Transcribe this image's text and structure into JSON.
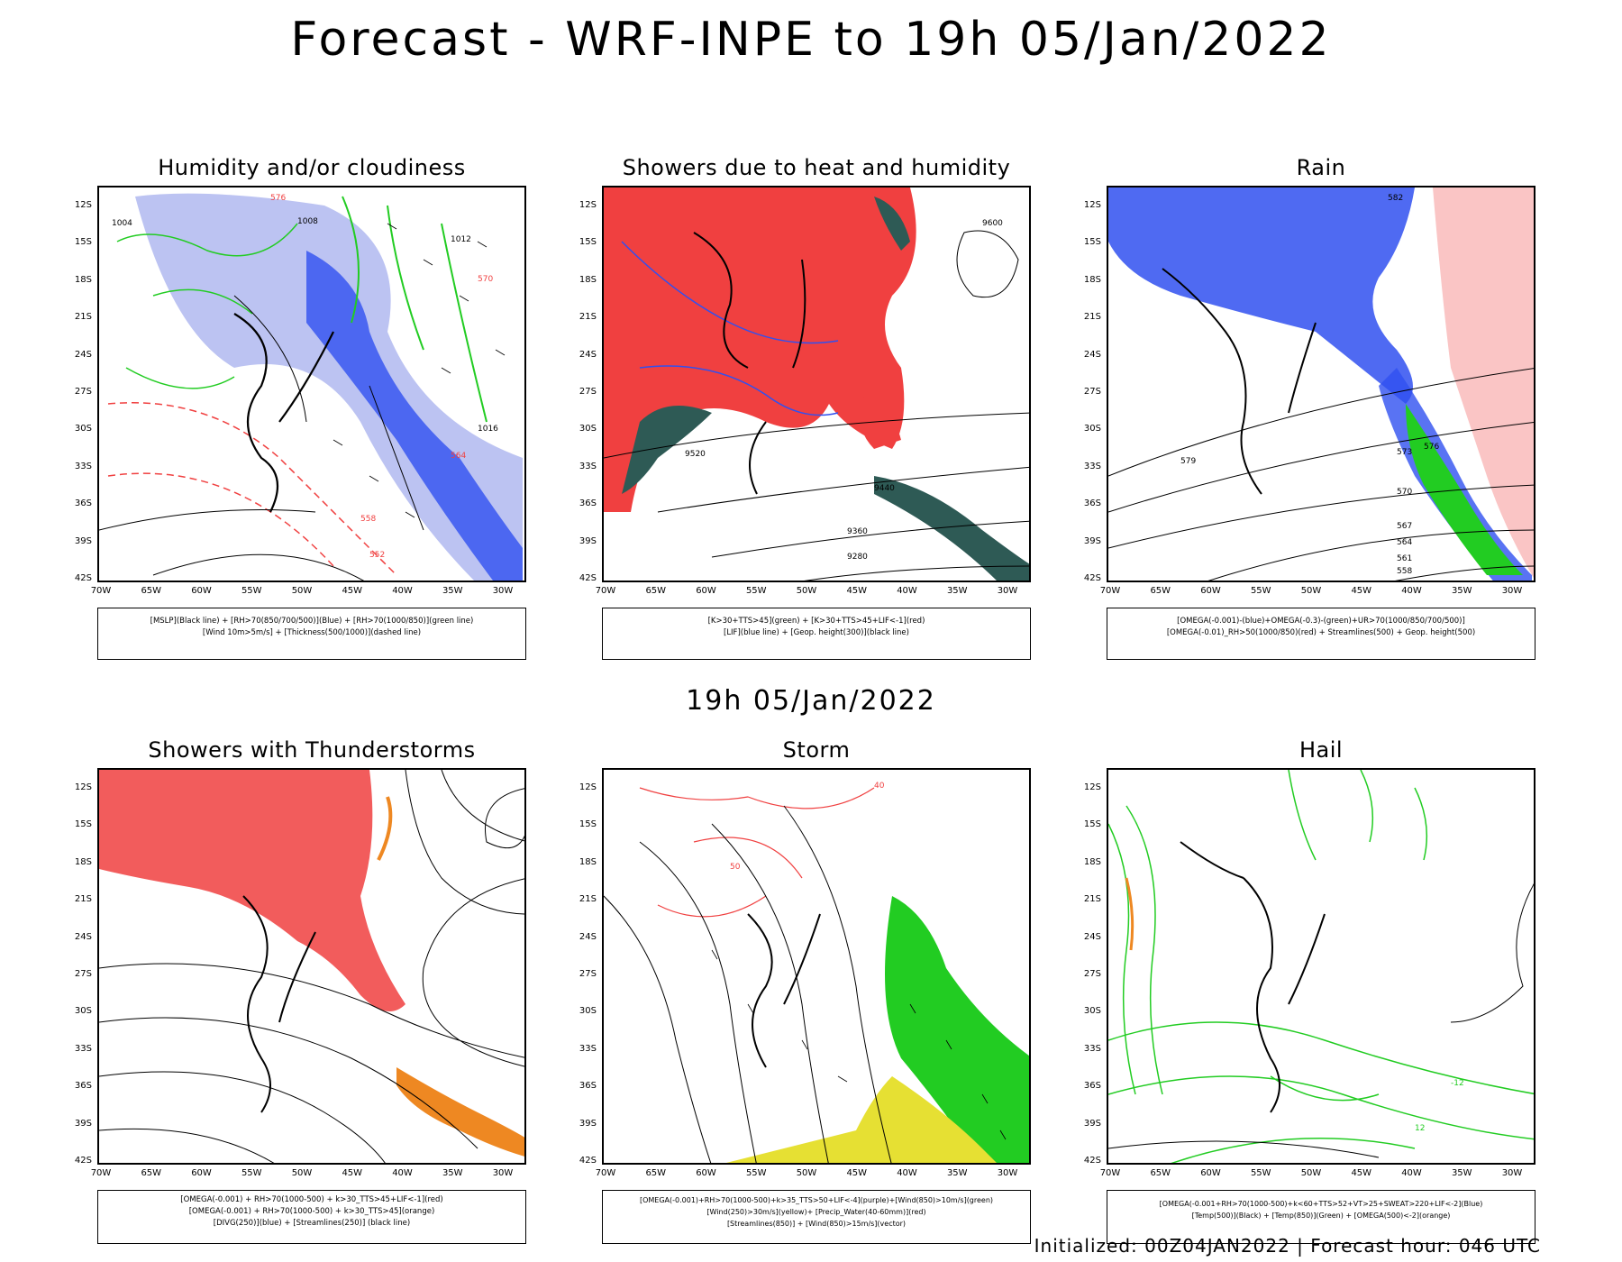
{
  "title": "Forecast - WRF-INPE to 19h 05/Jan/2022",
  "mid_title": "19h 05/Jan/2022",
  "footer": "Initialized: 00Z04JAN2022 | Forecast hour: 046 UTC",
  "axis": {
    "lat_labels": [
      "12S",
      "15S",
      "18S",
      "21S",
      "24S",
      "27S",
      "30S",
      "33S",
      "36S",
      "39S",
      "42S"
    ],
    "lon_labels": [
      "70W",
      "65W",
      "60W",
      "55W",
      "50W",
      "45W",
      "40W",
      "35W",
      "30W"
    ]
  },
  "colors": {
    "red": "#f04040",
    "blue": "#3050f0",
    "light_blue": "#b0b8f0",
    "green": "#22cc22",
    "dark_teal": "#2e5a55",
    "orange": "#ee8822",
    "yellow": "#e6e033",
    "black": "#000000"
  },
  "panels": [
    {
      "title": "Humidity and/or cloudiness",
      "legend": [
        "[MSLP](Black line) + [RH>70(850/700/500)](Blue) + [RH>70(1000/850)](green line)",
        "[Wind 10m>5m/s] + [Thickness(500/1000)](dashed line)"
      ],
      "contour_labels": [
        "1004",
        "1008",
        "1012",
        "1016",
        "576",
        "570",
        "564",
        "558",
        "552"
      ]
    },
    {
      "title": "Showers due to heat and humidity",
      "legend": [
        "[K>30+TTS>45](green) + [K>30+TTS>45+LIF<-1](red)",
        "[LIF](blue line) + [Geop. height(300)](black line)"
      ],
      "contour_labels": [
        "9600",
        "9520",
        "9440",
        "9360",
        "9280"
      ]
    },
    {
      "title": "Rain",
      "legend": [
        "[OMEGA(-0.001)-(blue)+OMEGA(-0.3)-(green)+UR>70(1000/850/700/500)]",
        "[OMEGA(-0.01)_RH>50(1000/850)(red) + Streamlines(500) + Geop. height(500)"
      ],
      "contour_labels": [
        "582",
        "579",
        "576",
        "573",
        "570",
        "567",
        "564",
        "561",
        "558"
      ]
    },
    {
      "title": "Showers with Thunderstorms",
      "legend": [
        "[OMEGA(-0.001) + RH>70(1000-500) + k>30_TTS>45+LIF<-1](red)",
        "[OMEGA(-0.001) + RH>70(1000-500) + k>30_TTS>45](orange)",
        "[DIVG(250)](blue) + [Streamlines(250)] (black line)"
      ],
      "contour_labels": []
    },
    {
      "title": "Storm",
      "legend": [
        "[OMEGA(-0.001)+RH>70(1000-500)+k>35_TTS>50+LIF<-4](purple)+[Wind(850)>10m/s](green)",
        "[Wind(250)>30m/s](yellow)+ [Precip_Water(40-60mm)](red)",
        "[Streamlines(850)] + [Wind(850)>15m/s](vector)"
      ],
      "contour_labels": [
        "50",
        "40"
      ]
    },
    {
      "title": "Hail",
      "legend": [
        "[OMEGA(-0.001+RH>70(1000-500)+k<60+TTS>52+VT>25+SWEAT>220+LIF<-2](Blue)",
        "[Temp(500)](Black) + [Temp(850)](Green) + [OMEGA(500)<-2](orange)"
      ],
      "contour_labels": [
        "-12",
        "12"
      ]
    }
  ]
}
